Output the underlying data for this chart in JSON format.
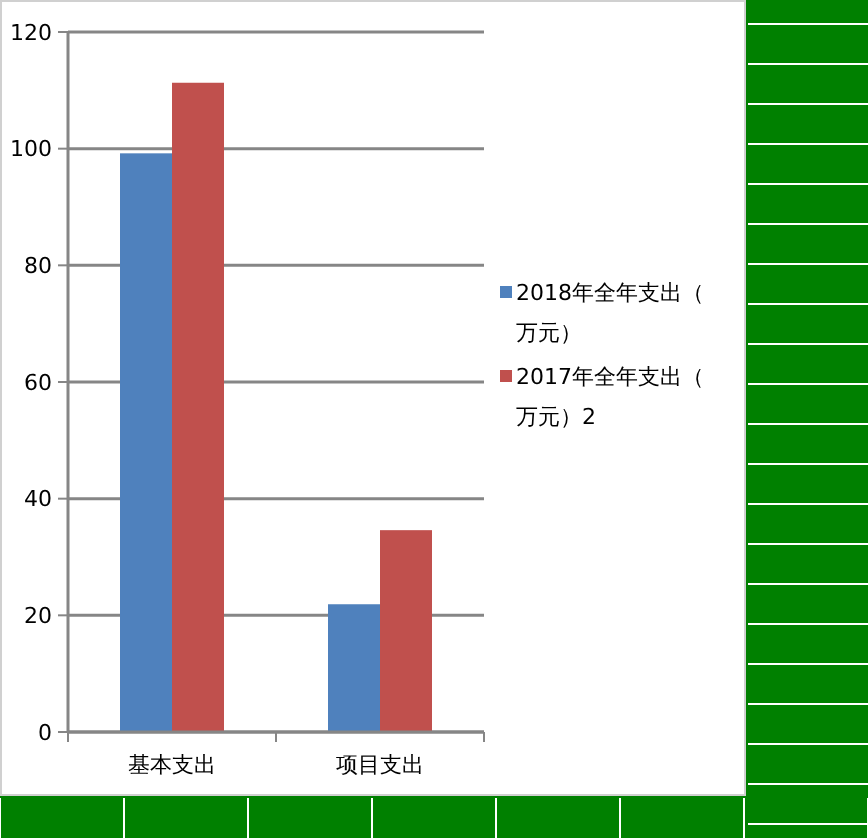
{
  "chart_data": {
    "type": "bar",
    "categories": [
      "基本支出",
      "项目支出"
    ],
    "series": [
      {
        "name": "2018年全年支出（万元）",
        "color": "#4f81bd",
        "values": [
          99.2,
          21.9
        ]
      },
      {
        "name": "2017年全年支出（万元）2",
        "color": "#c0504d",
        "values": [
          111.3,
          34.6
        ]
      }
    ],
    "ylim": [
      0,
      120
    ],
    "yticks": [
      0,
      20,
      40,
      60,
      80,
      100,
      120
    ],
    "grid": "y",
    "legend": "right"
  }
}
